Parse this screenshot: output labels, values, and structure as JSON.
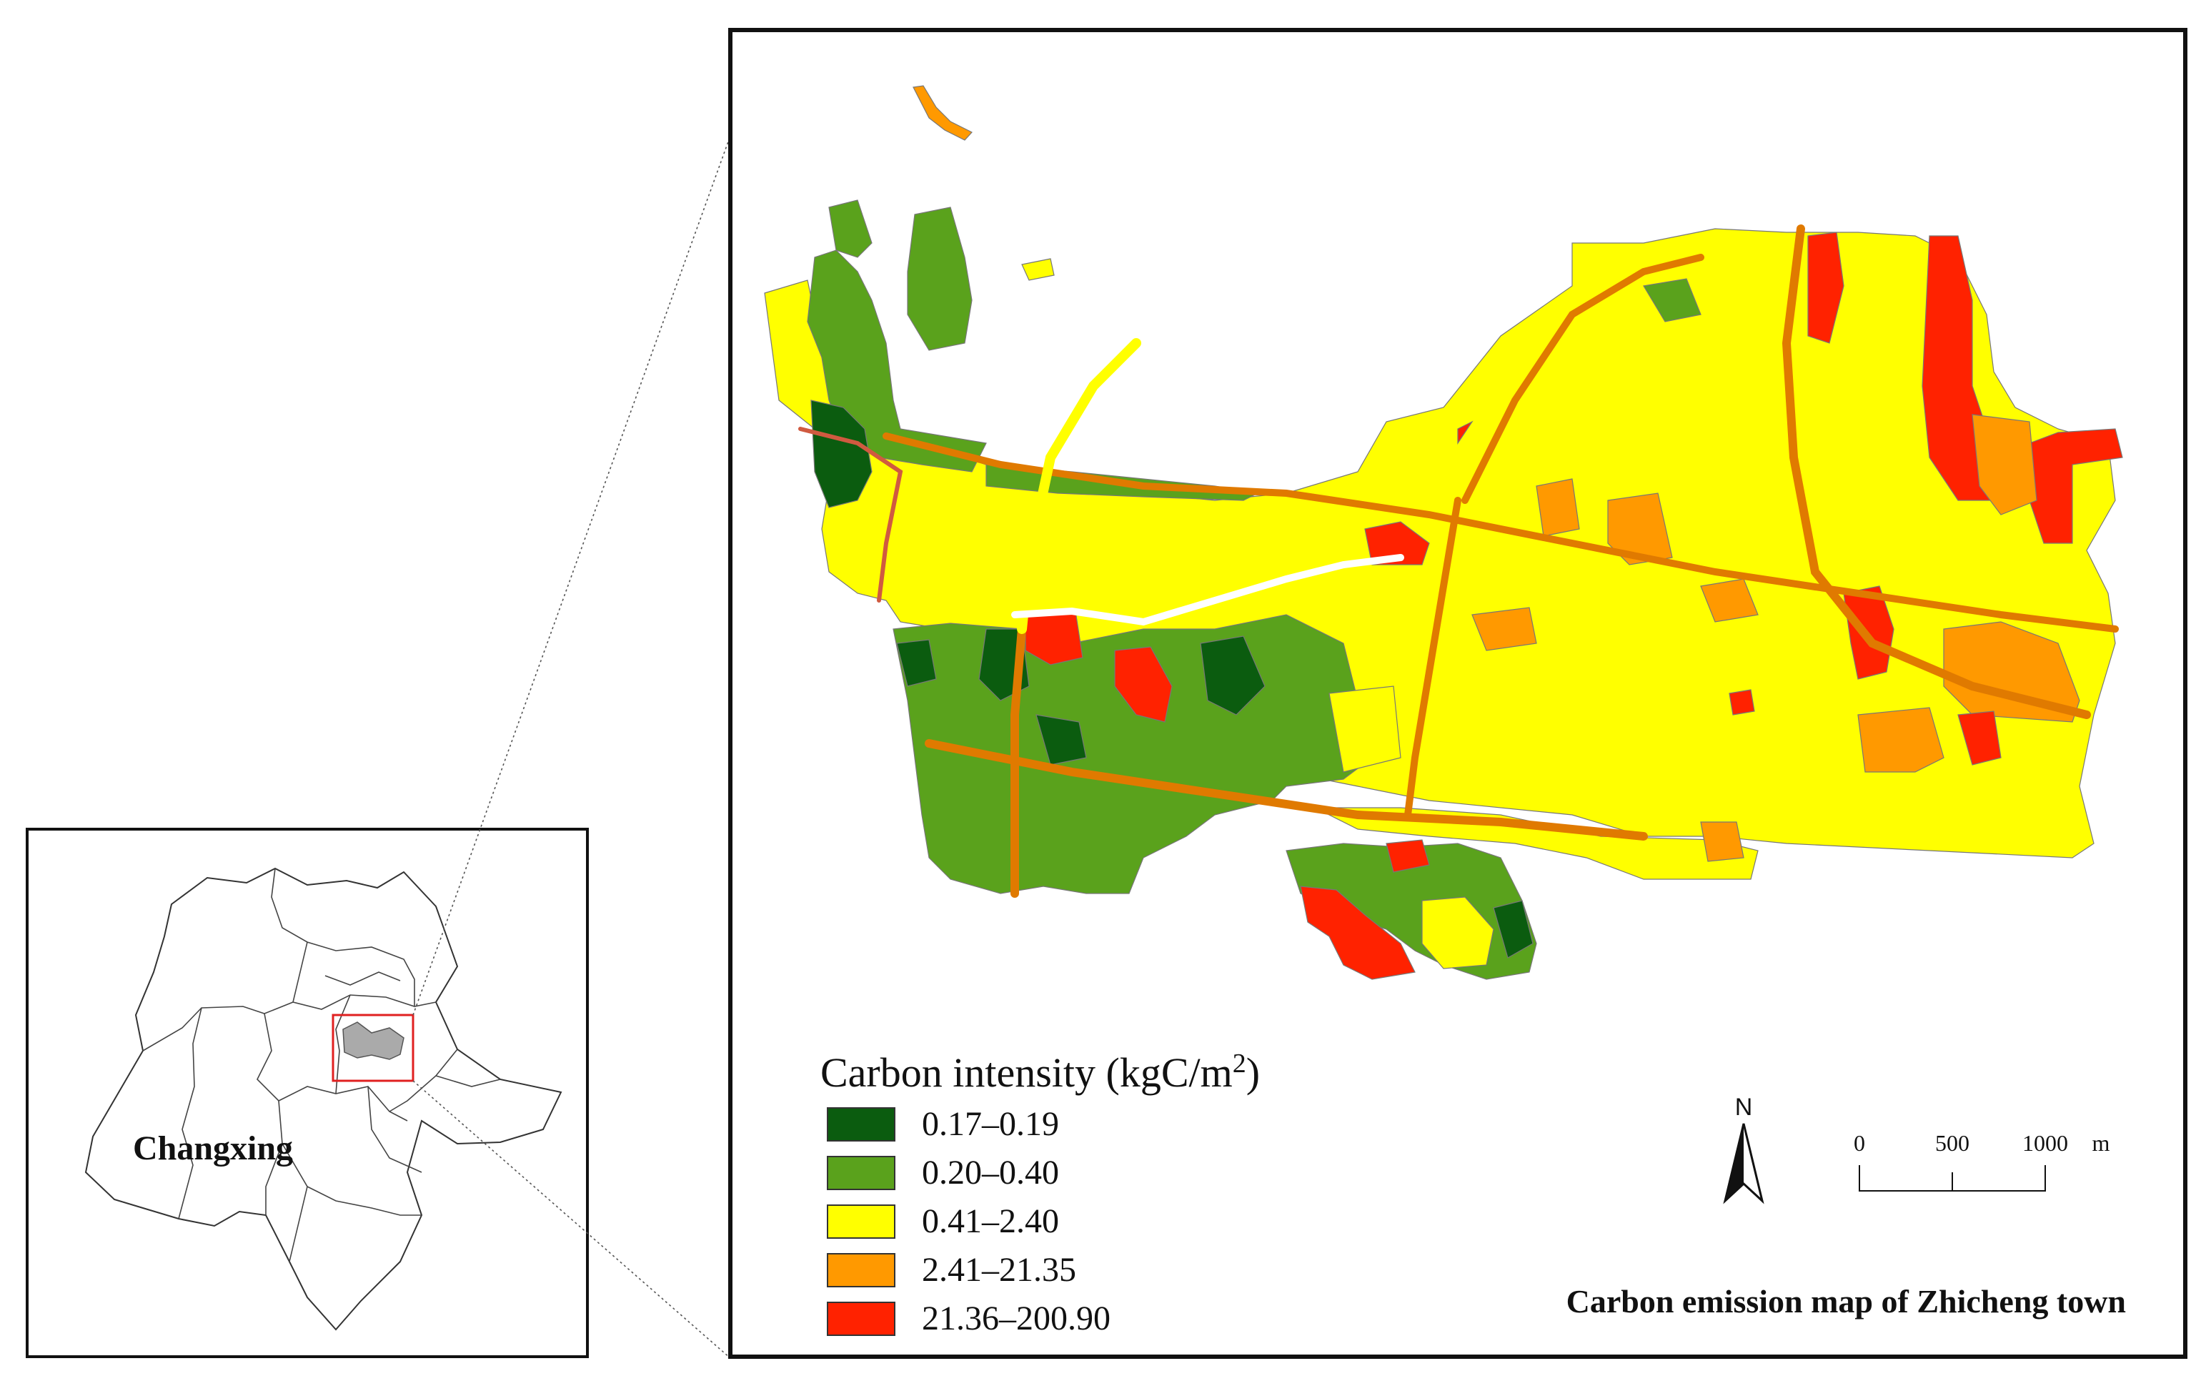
{
  "inset": {
    "county_label": "Changxing"
  },
  "main_map": {
    "title": "Carbon emission map of Zhicheng town",
    "legend": {
      "title_main": "Carbon intensity (kgC/m",
      "title_sup": "2",
      "title_close": ")",
      "classes": [
        {
          "label": "0.17–0.19",
          "color": "#0b5c0f"
        },
        {
          "label": "0.20–0.40",
          "color": "#5aa21c"
        },
        {
          "label": "0.41–2.40",
          "color": "#ffff00"
        },
        {
          "label": "2.41–21.35",
          "color": "#ff9900"
        },
        {
          "label": "21.36–200.90",
          "color": "#ff2200"
        }
      ]
    },
    "north_arrow": {
      "label": "N"
    },
    "scale_bar": {
      "ticks": [
        "0",
        "500",
        "1000"
      ],
      "unit": "m"
    }
  },
  "colors": {
    "road": "#e07a00",
    "road_dark": "#c86400",
    "inset_highlight": "#aaaaaa",
    "inset_box": "#e02020"
  }
}
